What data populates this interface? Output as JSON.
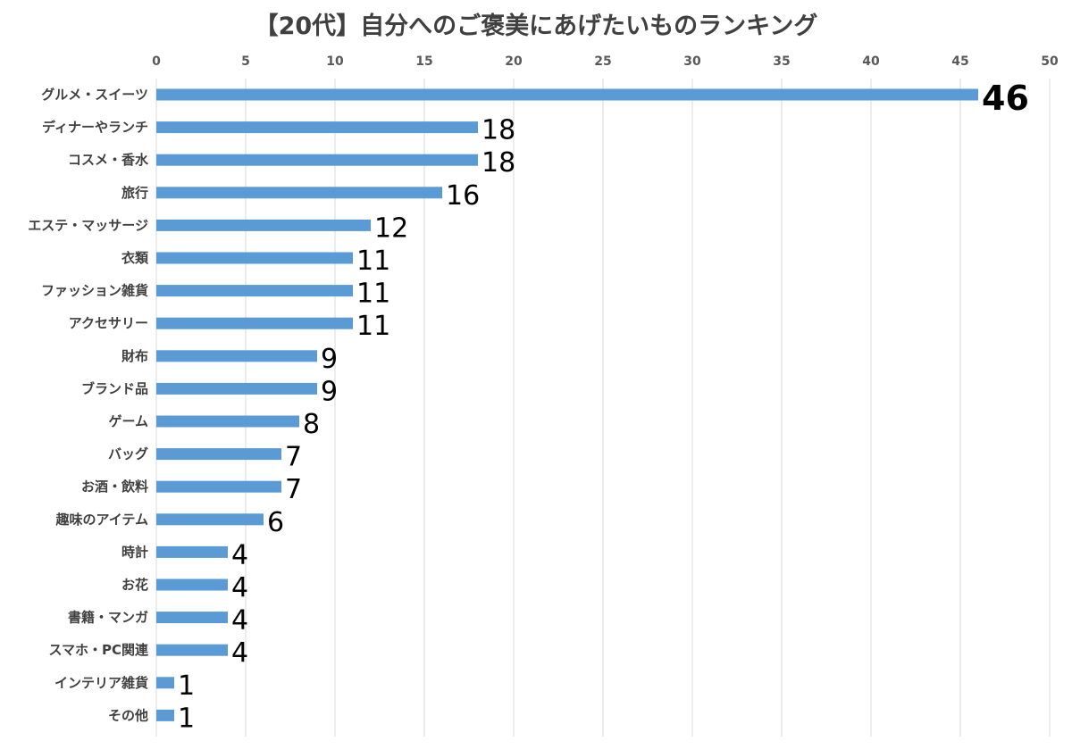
{
  "chart_data": {
    "type": "bar",
    "orientation": "horizontal",
    "title": "【20代】自分へのご褒美にあげたいものランキング",
    "categories": [
      "グルメ・スイーツ",
      "ディナーやランチ",
      "コスメ・香水",
      "旅行",
      "エステ・マッサージ",
      "衣類",
      "ファッション雑貨",
      "アクセサリー",
      "財布",
      "ブランド品",
      "ゲーム",
      "バッグ",
      "お酒・飲料",
      "趣味のアイテム",
      "時計",
      "お花",
      "書籍・マンガ",
      "スマホ・PC関連",
      "インテリア雑貨",
      "その他"
    ],
    "values": [
      46,
      18,
      18,
      16,
      12,
      11,
      11,
      11,
      9,
      9,
      8,
      7,
      7,
      6,
      4,
      4,
      4,
      4,
      1,
      1
    ],
    "xlim": [
      0,
      50
    ],
    "xticks": [
      0,
      5,
      10,
      15,
      20,
      25,
      30,
      35,
      40,
      45,
      50
    ],
    "x_axis_position": "top",
    "grid": true,
    "data_labels": true,
    "legend": "none",
    "bar_color": "#5b9bd5",
    "grid_color": "#d9d9d9"
  }
}
